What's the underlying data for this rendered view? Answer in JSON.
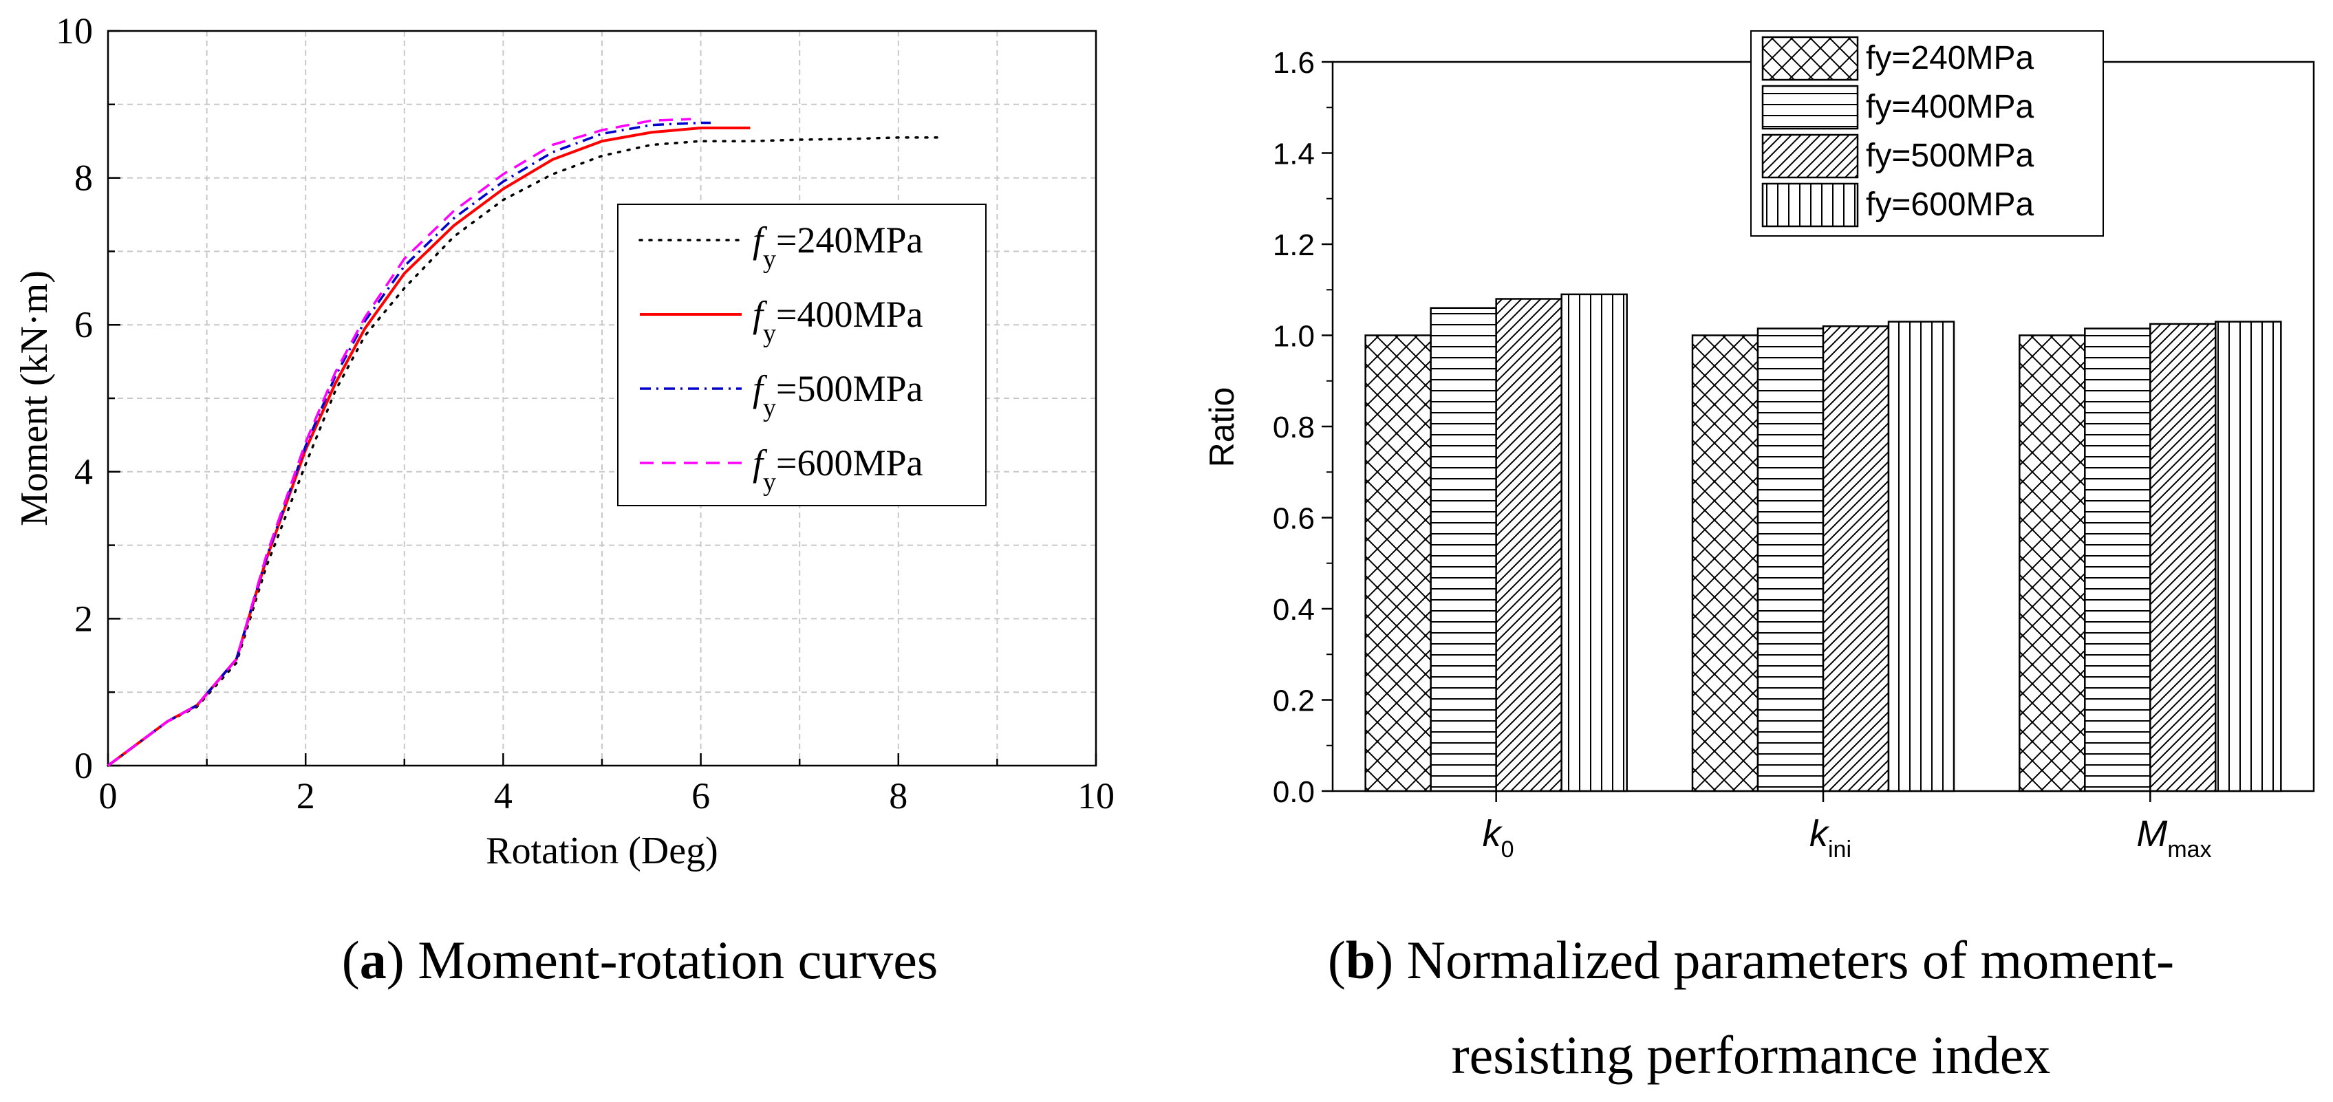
{
  "chart_data": [
    {
      "type": "line",
      "title": "",
      "xlabel": "Rotation (Deg)",
      "ylabel": "Moment (kN·m)",
      "xlim": [
        0,
        10
      ],
      "ylim": [
        0,
        10
      ],
      "xticks": [
        "0",
        "2",
        "4",
        "6",
        "8",
        "10"
      ],
      "yticks": [
        "0",
        "2",
        "4",
        "6",
        "8",
        "10"
      ],
      "grid": true,
      "legend_position": "center-right",
      "series": [
        {
          "name": "fy=240MPa",
          "legend_f": "f",
          "legend_sub": "y",
          "legend_rest": "=240MPa",
          "color": "#000000",
          "dash": "dotted",
          "x": [
            0,
            0.3,
            0.6,
            0.9,
            1.3,
            1.6,
            2.0,
            2.3,
            2.6,
            3.0,
            3.5,
            4.0,
            4.5,
            5.0,
            5.5,
            6.0,
            6.5,
            7.0,
            7.5,
            8.0,
            8.4
          ],
          "y": [
            0,
            0.3,
            0.6,
            0.8,
            1.4,
            2.7,
            4.1,
            5.1,
            5.85,
            6.5,
            7.2,
            7.7,
            8.05,
            8.3,
            8.45,
            8.5,
            8.5,
            8.52,
            8.53,
            8.55,
            8.55
          ]
        },
        {
          "name": "fy=400MPa",
          "legend_f": "f",
          "legend_sub": "y",
          "legend_rest": "=400MPa",
          "color": "#ff0000",
          "dash": "solid",
          "x": [
            0,
            0.3,
            0.6,
            0.9,
            1.3,
            1.6,
            2.0,
            2.3,
            2.6,
            3.0,
            3.5,
            4.0,
            4.5,
            5.0,
            5.5,
            6.0,
            6.5
          ],
          "y": [
            0,
            0.3,
            0.6,
            0.82,
            1.45,
            2.8,
            4.3,
            5.2,
            5.95,
            6.7,
            7.35,
            7.85,
            8.25,
            8.5,
            8.62,
            8.68,
            8.68
          ]
        },
        {
          "name": "fy=500MPa",
          "legend_f": "f",
          "legend_sub": "y",
          "legend_rest": "=500MPa",
          "color": "#0000cc",
          "dash": "dashdot",
          "x": [
            0,
            0.3,
            0.6,
            0.9,
            1.3,
            1.6,
            2.0,
            2.3,
            2.6,
            3.0,
            3.5,
            4.0,
            4.5,
            5.0,
            5.5,
            6.0,
            6.1
          ],
          "y": [
            0,
            0.3,
            0.6,
            0.82,
            1.45,
            2.82,
            4.35,
            5.3,
            6.05,
            6.8,
            7.45,
            7.95,
            8.35,
            8.6,
            8.72,
            8.75,
            8.75
          ]
        },
        {
          "name": "fy=600MPa",
          "legend_f": "f",
          "legend_sub": "y",
          "legend_rest": "=600MPa",
          "color": "#ff00ff",
          "dash": "dashed",
          "x": [
            0,
            0.3,
            0.6,
            0.9,
            1.3,
            1.6,
            2.0,
            2.3,
            2.6,
            3.0,
            3.5,
            4.0,
            4.5,
            5.0,
            5.5,
            5.9
          ],
          "y": [
            0,
            0.3,
            0.6,
            0.82,
            1.45,
            2.85,
            4.4,
            5.35,
            6.1,
            6.9,
            7.55,
            8.05,
            8.45,
            8.65,
            8.78,
            8.8
          ]
        }
      ],
      "caption_letter": "a",
      "caption_text": "Moment-rotation curves"
    },
    {
      "type": "bar",
      "title": "",
      "xlabel": "",
      "ylabel": "Ratio",
      "ylim": [
        0,
        1.6
      ],
      "yticks": [
        "0.0",
        "0.2",
        "0.4",
        "0.6",
        "0.8",
        "1.0",
        "1.2",
        "1.4",
        "1.6"
      ],
      "grid": false,
      "legend_position": "top-center",
      "categories": [
        {
          "label": "k0",
          "main": "k",
          "sub": "0"
        },
        {
          "label": "kini",
          "main": "k",
          "sub": "ini"
        },
        {
          "label": "Mmax",
          "main": "M",
          "sub": "max"
        }
      ],
      "series": [
        {
          "name": "fy=240MPa",
          "pattern": "crosshatch",
          "values": [
            1.0,
            1.0,
            1.0
          ]
        },
        {
          "name": "fy=400MPa",
          "pattern": "horizontal",
          "values": [
            1.06,
            1.015,
            1.015
          ]
        },
        {
          "name": "fy=500MPa",
          "pattern": "diagonal",
          "values": [
            1.08,
            1.02,
            1.025
          ]
        },
        {
          "name": "fy=600MPa",
          "pattern": "vertical",
          "values": [
            1.09,
            1.03,
            1.03
          ]
        }
      ],
      "caption_letter": "b",
      "caption_text_line1": "Normalized parameters of moment-",
      "caption_text_line2": "resisting performance index"
    }
  ]
}
